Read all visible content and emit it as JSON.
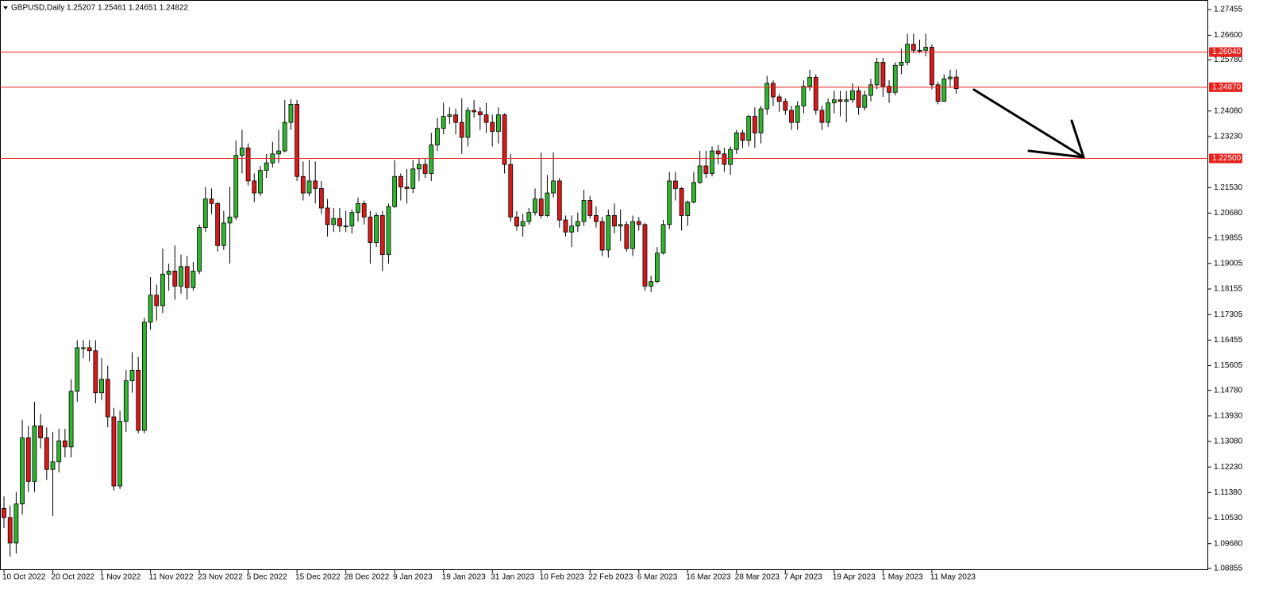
{
  "chart_data": {
    "type": "candlestick",
    "title": "GBPUSD,Daily  1.25207 1.25461 1.24651 1.24822",
    "categories": [
      "10 Oct 2022",
      null,
      null,
      null,
      null,
      null,
      null,
      null,
      "20 Oct 2022",
      null,
      null,
      null,
      null,
      null,
      null,
      null,
      "1 Nov 2022",
      null,
      null,
      null,
      null,
      null,
      null,
      null,
      "11 Nov 2022",
      null,
      null,
      null,
      null,
      null,
      null,
      null,
      "23 Nov 2022",
      null,
      null,
      null,
      null,
      null,
      null,
      null,
      "5 Dec 2022",
      null,
      null,
      null,
      null,
      null,
      null,
      null,
      "15 Dec 2022",
      null,
      null,
      null,
      null,
      null,
      null,
      null,
      "28 Dec 2022",
      null,
      null,
      null,
      null,
      null,
      null,
      null,
      "9 Jan 2023",
      null,
      null,
      null,
      null,
      null,
      null,
      null,
      "19 Jan 2023",
      null,
      null,
      null,
      null,
      null,
      null,
      null,
      "31 Jan 2023",
      null,
      null,
      null,
      null,
      null,
      null,
      null,
      "10 Feb 2023",
      null,
      null,
      null,
      null,
      null,
      null,
      null,
      "22 Feb 2023",
      null,
      null,
      null,
      null,
      null,
      null,
      null,
      "6 Mar 2023",
      null,
      null,
      null,
      null,
      null,
      null,
      null,
      "16 Mar 2023",
      null,
      null,
      null,
      null,
      null,
      null,
      null,
      "28 Mar 2023",
      null,
      null,
      null,
      null,
      null,
      null,
      null,
      "7 Apr 2023",
      null,
      null,
      null,
      null,
      null,
      null,
      null,
      "19 Apr 2023",
      null,
      null,
      null,
      null,
      null,
      null,
      null,
      "1 May 2023",
      null,
      null,
      null,
      null,
      null,
      null,
      null,
      "11 May 2023",
      null,
      null,
      null,
      null
    ],
    "open": [
      1.1085,
      1.1055,
      1.097,
      1.11,
      1.132,
      1.1175,
      1.136,
      1.132,
      1.1215,
      1.124,
      1.131,
      1.129,
      1.1475,
      1.162,
      1.162,
      1.161,
      1.147,
      1.1515,
      1.139,
      1.116,
      1.1375,
      1.151,
      1.1545,
      1.1345,
      1.1705,
      1.1795,
      1.176,
      1.1865,
      1.1875,
      1.1825,
      1.189,
      1.182,
      1.1875,
      1.202,
      1.2115,
      1.21,
      1.196,
      1.2035,
      1.2055,
      1.226,
      1.2285,
      1.2175,
      1.2135,
      1.221,
      1.2235,
      1.2265,
      1.2275,
      1.237,
      1.243,
      1.219,
      1.2135,
      1.2175,
      1.215,
      1.2085,
      1.203,
      1.205,
      1.2025,
      1.2025,
      1.207,
      1.21,
      1.2055,
      1.197,
      1.206,
      1.193,
      1.209,
      1.219,
      1.2155,
      1.215,
      1.2215,
      1.223,
      1.22,
      1.2295,
      1.235,
      1.239,
      1.2395,
      1.237,
      1.232,
      1.241,
      1.2405,
      1.2395,
      1.237,
      1.234,
      1.2395,
      1.223,
      1.2055,
      1.2025,
      1.204,
      1.207,
      1.2115,
      1.206,
      1.2135,
      1.2175,
      1.2045,
      1.2005,
      1.2025,
      1.204,
      1.211,
      1.206,
      1.204,
      1.1945,
      1.206,
      1.2025,
      1.203,
      1.195,
      1.204,
      1.203,
      1.1825,
      1.184,
      1.1935,
      1.203,
      1.2175,
      1.215,
      1.206,
      1.2105,
      1.217,
      1.2225,
      1.22,
      1.2275,
      1.2265,
      1.223,
      1.228,
      1.2335,
      1.231,
      1.239,
      1.2335,
      1.2415,
      1.25,
      1.2455,
      1.244,
      1.241,
      1.237,
      1.2425,
      1.249,
      1.252,
      1.241,
      1.237,
      1.2435,
      1.2445,
      1.244,
      1.2445,
      1.2475,
      1.242,
      1.246,
      1.2495,
      1.257,
      1.249,
      1.247,
      1.256,
      1.257,
      1.263,
      1.261,
      1.261,
      1.262,
      1.2495,
      1.244,
      1.2515,
      1.25207
    ],
    "high": [
      1.1125,
      1.1095,
      1.114,
      1.138,
      1.136,
      1.144,
      1.14,
      1.1355,
      1.134,
      1.135,
      1.135,
      1.1515,
      1.1645,
      1.1645,
      1.1645,
      1.1645,
      1.1585,
      1.156,
      1.142,
      1.141,
      1.1545,
      1.1605,
      1.159,
      1.172,
      1.1855,
      1.183,
      1.195,
      1.19,
      1.196,
      1.193,
      1.1925,
      1.1905,
      1.203,
      1.2155,
      1.215,
      1.2105,
      1.2075,
      1.2155,
      1.231,
      1.2345,
      1.23,
      1.22,
      1.2225,
      1.2265,
      1.2305,
      1.2345,
      1.2445,
      1.2447,
      1.2445,
      1.224,
      1.2245,
      1.224,
      1.2175,
      1.2115,
      1.2085,
      1.2085,
      1.2075,
      1.208,
      1.212,
      1.211,
      1.2075,
      1.207,
      1.2075,
      1.21,
      1.2245,
      1.22,
      1.2215,
      1.2245,
      1.225,
      1.225,
      1.2335,
      1.2385,
      1.2435,
      1.242,
      1.2415,
      1.245,
      1.242,
      1.2445,
      1.242,
      1.2435,
      1.2395,
      1.242,
      1.24,
      1.2265,
      1.2075,
      1.2065,
      1.2085,
      1.215,
      1.227,
      1.2195,
      1.227,
      1.2185,
      1.206,
      1.206,
      1.207,
      1.2145,
      1.2125,
      1.209,
      1.2055,
      1.208,
      1.21,
      1.208,
      1.204,
      1.206,
      1.2055,
      1.2035,
      1.186,
      1.1955,
      1.2045,
      1.2205,
      1.2205,
      1.2155,
      1.211,
      1.2205,
      1.2275,
      1.2275,
      1.229,
      1.2295,
      1.2285,
      1.229,
      1.2345,
      1.2345,
      1.2395,
      1.242,
      1.2425,
      1.2525,
      1.251,
      1.2465,
      1.245,
      1.2425,
      1.244,
      1.251,
      1.2545,
      1.253,
      1.2425,
      1.245,
      1.2475,
      1.2475,
      1.2475,
      1.25,
      1.249,
      1.2475,
      1.2515,
      1.2585,
      1.2585,
      1.251,
      1.257,
      1.2615,
      1.2665,
      1.2665,
      1.2645,
      1.2665,
      1.263,
      1.2505,
      1.253,
      1.2545,
      1.25461
    ],
    "low": [
      1.102,
      1.0925,
      1.0935,
      1.1065,
      1.114,
      1.114,
      1.1285,
      1.118,
      1.106,
      1.1205,
      1.1255,
      1.1255,
      1.144,
      1.1585,
      1.1575,
      1.1435,
      1.1445,
      1.1355,
      1.1145,
      1.115,
      1.134,
      1.147,
      1.1335,
      1.1335,
      1.168,
      1.171,
      1.1735,
      1.181,
      1.178,
      1.18,
      1.178,
      1.181,
      1.1865,
      1.2005,
      1.2065,
      1.194,
      1.1945,
      1.19,
      1.2045,
      1.22,
      1.216,
      1.2105,
      1.2125,
      1.2185,
      1.222,
      1.2235,
      1.227,
      1.2345,
      1.2175,
      1.211,
      1.2125,
      1.21,
      1.2065,
      1.199,
      1.2005,
      1.2005,
      1.2005,
      1.2,
      1.204,
      1.203,
      1.19,
      1.1955,
      1.1875,
      1.19,
      1.2085,
      1.211,
      1.21,
      1.2135,
      1.2175,
      1.2185,
      1.2175,
      1.2275,
      1.233,
      1.2365,
      1.233,
      1.2265,
      1.229,
      1.2385,
      1.2345,
      1.2335,
      1.229,
      1.23,
      1.22,
      1.204,
      1.201,
      1.199,
      1.203,
      1.206,
      1.205,
      1.2055,
      1.212,
      1.202,
      1.199,
      1.1955,
      1.2005,
      1.2025,
      1.205,
      1.202,
      1.1925,
      1.192,
      1.2,
      1.1975,
      1.194,
      1.1925,
      1.201,
      1.181,
      1.1805,
      1.1835,
      1.193,
      1.2015,
      1.211,
      1.201,
      1.2025,
      1.21,
      1.2165,
      1.2185,
      1.219,
      1.223,
      1.2205,
      1.2195,
      1.2265,
      1.2285,
      1.229,
      1.2285,
      1.23,
      1.2395,
      1.2425,
      1.2405,
      1.2395,
      1.2345,
      1.2345,
      1.24,
      1.2475,
      1.2395,
      1.2345,
      1.2355,
      1.24,
      1.239,
      1.237,
      1.2435,
      1.2395,
      1.241,
      1.244,
      1.248,
      1.2455,
      1.2435,
      1.246,
      1.253,
      1.256,
      1.26,
      1.26,
      1.259,
      1.248,
      1.243,
      1.244,
      1.2485,
      1.24651
    ],
    "close": [
      1.1055,
      1.097,
      1.11,
      1.132,
      1.1175,
      1.136,
      1.132,
      1.1215,
      1.124,
      1.131,
      1.129,
      1.1475,
      1.162,
      1.162,
      1.161,
      1.147,
      1.1515,
      1.139,
      1.116,
      1.1375,
      1.151,
      1.1545,
      1.1345,
      1.1705,
      1.1795,
      1.176,
      1.1865,
      1.1875,
      1.1825,
      1.189,
      1.182,
      1.1875,
      1.202,
      1.2115,
      1.21,
      1.196,
      1.2035,
      1.2055,
      1.226,
      1.2285,
      1.2175,
      1.2135,
      1.221,
      1.2235,
      1.2265,
      1.2275,
      1.237,
      1.243,
      1.219,
      1.2135,
      1.2175,
      1.215,
      1.2085,
      1.203,
      1.205,
      1.2025,
      1.2025,
      1.207,
      1.21,
      1.2055,
      1.197,
      1.206,
      1.193,
      1.209,
      1.219,
      1.2155,
      1.215,
      1.2215,
      1.223,
      1.22,
      1.2295,
      1.235,
      1.239,
      1.2395,
      1.237,
      1.232,
      1.241,
      1.2405,
      1.2395,
      1.237,
      1.234,
      1.2395,
      1.223,
      1.2055,
      1.2025,
      1.204,
      1.207,
      1.2115,
      1.206,
      1.2135,
      1.2175,
      1.2045,
      1.2005,
      1.2025,
      1.204,
      1.211,
      1.206,
      1.204,
      1.1945,
      1.206,
      1.2025,
      1.203,
      1.195,
      1.204,
      1.203,
      1.1825,
      1.184,
      1.1935,
      1.203,
      1.2175,
      1.215,
      1.206,
      1.2105,
      1.217,
      1.2225,
      1.22,
      1.2275,
      1.2265,
      1.223,
      1.228,
      1.2335,
      1.231,
      1.239,
      1.2335,
      1.2415,
      1.25,
      1.2455,
      1.244,
      1.241,
      1.237,
      1.2425,
      1.249,
      1.252,
      1.241,
      1.237,
      1.2435,
      1.2445,
      1.244,
      1.2445,
      1.2475,
      1.242,
      1.246,
      1.2495,
      1.257,
      1.249,
      1.247,
      1.256,
      1.257,
      1.263,
      1.261,
      1.261,
      1.262,
      1.2495,
      1.244,
      1.2515,
      1.25207,
      1.24822
    ],
    "up_color": "#2fb52f",
    "down_color": "#d91a1a",
    "ylim": [
      1.088,
      1.2772
    ],
    "yticks": [
      1.27455,
      {
        "value": 1.266,
        "label": "1.26600"
      },
      {
        "value": 1.2578,
        "label": "1.25780"
      },
      {
        "value": 1.2408,
        "label": "1.24080"
      },
      {
        "value": 1.2323,
        "label": "1.23230"
      },
      {
        "value": 1.2153,
        "label": "1.21530"
      },
      {
        "value": 1.2068,
        "label": "1.20680"
      },
      1.19855,
      1.19005,
      1.18155,
      1.17305,
      1.16455,
      1.15605,
      {
        "value": 1.1478,
        "label": "1.14780"
      },
      {
        "value": 1.1393,
        "label": "1.13930"
      },
      {
        "value": 1.1308,
        "label": "1.13080"
      },
      {
        "value": 1.1223,
        "label": "1.12230"
      },
      {
        "value": 1.1138,
        "label": "1.11380"
      },
      {
        "value": 1.1053,
        "label": "1.10530"
      },
      {
        "value": 1.0968,
        "label": "1.09680"
      },
      1.08855
    ],
    "hlines": [
      {
        "value": 1.2604,
        "label": "1.26040"
      },
      {
        "value": 1.2487,
        "label": "1.24870"
      },
      {
        "value": 1.225,
        "label": "1.22500"
      }
    ],
    "hline_color": "#e8231f"
  }
}
